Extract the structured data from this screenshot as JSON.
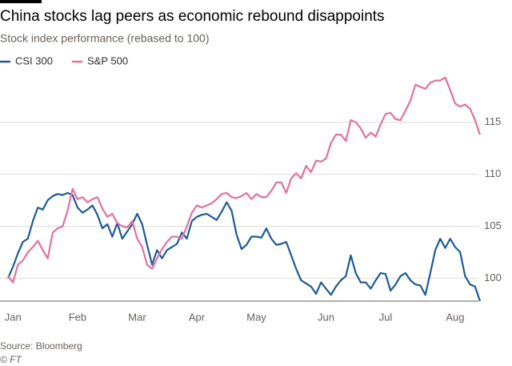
{
  "chart_data": {
    "type": "line",
    "title": "China stocks lag peers as economic rebound disappoints",
    "subtitle": "Stock index performance (rebased to 100)",
    "source": "Source: Bloomberg",
    "credit": "© FT",
    "categories": [
      null,
      "Jan",
      null,
      null,
      null,
      null,
      null,
      null,
      null,
      null,
      null,
      null,
      null,
      null,
      "Feb",
      null,
      null,
      null,
      null,
      null,
      null,
      null,
      null,
      null,
      null,
      null,
      "Mar",
      null,
      null,
      null,
      null,
      null,
      null,
      null,
      null,
      null,
      null,
      null,
      "Apr",
      null,
      null,
      null,
      null,
      null,
      null,
      null,
      null,
      null,
      null,
      null,
      "May",
      null,
      null,
      null,
      null,
      null,
      null,
      null,
      null,
      null,
      null,
      null,
      null,
      null,
      "Jun",
      null,
      null,
      null,
      null,
      null,
      null,
      null,
      null,
      null,
      null,
      null,
      "Jul",
      null,
      null,
      null,
      null,
      null,
      null,
      null,
      null,
      null,
      null,
      null,
      null,
      null,
      "Aug",
      null,
      null,
      null,
      null,
      null
    ],
    "series": [
      {
        "name": "CSI 300",
        "color": "#1d5b97",
        "values": [
          100.0,
          101.1,
          102.4,
          103.5,
          103.8,
          105.5,
          106.8,
          106.6,
          107.5,
          107.9,
          108.1,
          108.0,
          108.2,
          108.0,
          106.8,
          106.3,
          106.6,
          107.0,
          106.1,
          104.8,
          105.2,
          104.0,
          105.3,
          103.8,
          104.5,
          105.2,
          106.2,
          105.2,
          103.2,
          101.3,
          102.7,
          101.9,
          102.7,
          103.0,
          103.3,
          104.4,
          103.8,
          105.5,
          105.9,
          106.1,
          106.2,
          105.9,
          105.6,
          106.4,
          107.3,
          106.5,
          104.2,
          102.8,
          103.2,
          104.0,
          104.0,
          103.9,
          104.8,
          103.8,
          103.2,
          103.3,
          103.5,
          102.2,
          100.9,
          99.8,
          99.5,
          99.2,
          98.5,
          99.6,
          99.0,
          98.4,
          99.2,
          99.8,
          100.2,
          102.2,
          100.5,
          99.6,
          99.6,
          99.0,
          99.8,
          100.5,
          100.4,
          98.8,
          99.4,
          100.2,
          100.5,
          99.8,
          99.4,
          99.3,
          98.4,
          100.5,
          102.7,
          103.8,
          102.9,
          103.8,
          103.0,
          102.5,
          100.2,
          99.4,
          99.2,
          97.8
        ]
      },
      {
        "name": "S&P 500",
        "color": "#e3709e",
        "values": [
          100.2,
          99.6,
          101.3,
          101.7,
          102.5,
          103.0,
          103.6,
          102.7,
          101.9,
          104.4,
          104.8,
          105.0,
          106.5,
          108.6,
          107.6,
          107.8,
          107.3,
          107.6,
          107.8,
          106.7,
          105.9,
          106.2,
          105.3,
          105.0,
          104.9,
          105.5,
          103.8,
          103.0,
          101.3,
          100.9,
          101.9,
          102.8,
          103.5,
          104.0,
          104.0,
          103.8,
          105.0,
          106.3,
          107.0,
          106.8,
          107.0,
          107.2,
          107.6,
          108.1,
          108.2,
          107.8,
          107.7,
          107.9,
          108.2,
          107.6,
          108.1,
          107.8,
          107.8,
          108.4,
          109.2,
          109.2,
          108.2,
          109.6,
          110.1,
          109.6,
          110.8,
          110.2,
          111.3,
          111.2,
          111.5,
          113.0,
          113.8,
          113.8,
          113.2,
          115.2,
          115.0,
          114.4,
          113.5,
          114.0,
          113.6,
          114.8,
          115.8,
          115.9,
          115.3,
          115.2,
          116.1,
          117.1,
          118.6,
          118.4,
          118.2,
          118.8,
          119.0,
          119.0,
          119.3,
          118.1,
          116.8,
          116.5,
          116.7,
          116.3,
          115.2,
          113.8
        ]
      }
    ],
    "ylim": [
      97.8,
      120.2
    ],
    "yticks": [
      100,
      105,
      110,
      115
    ],
    "grid": true
  }
}
